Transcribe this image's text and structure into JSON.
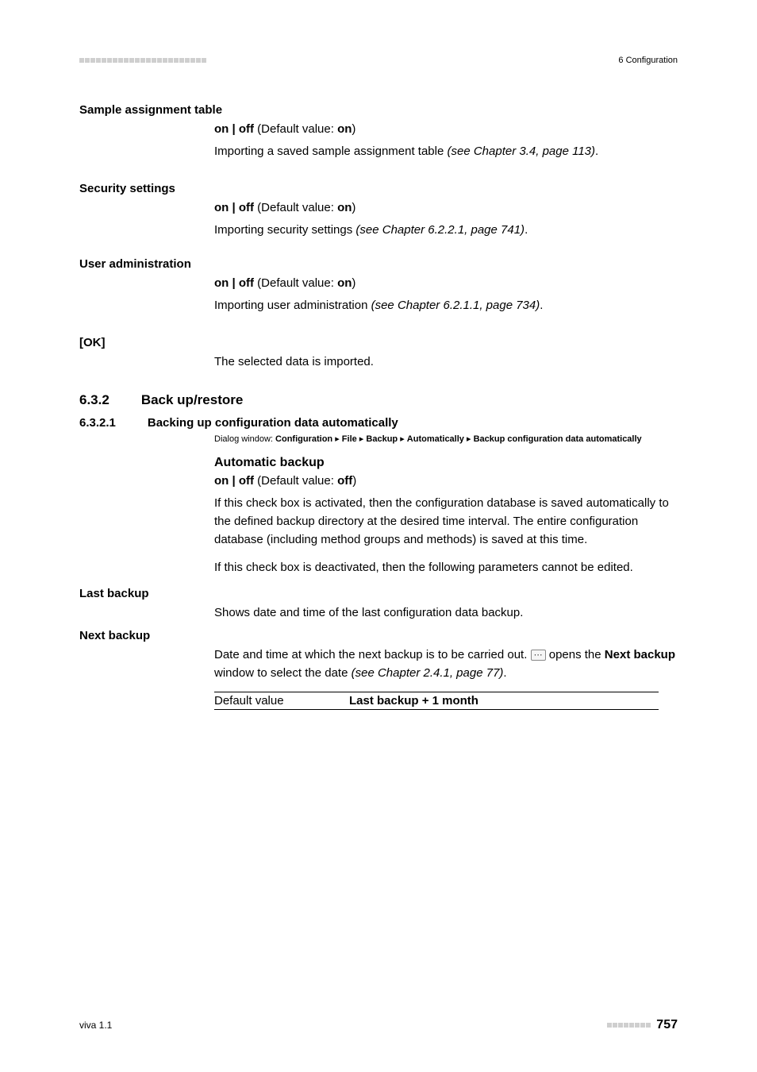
{
  "header": {
    "dash_count": 23,
    "dash_color": "#cfcfcf",
    "right": "6 Configuration"
  },
  "sections": {
    "sample_assignment": {
      "label": "Sample assignment table",
      "onoff": "on | off",
      "default_text": " (Default value: ",
      "default_value": "on",
      "close_paren": ")",
      "desc_pre": "Importing a saved sample assignment table ",
      "desc_italic": "(see Chapter 3.4, page 113)",
      "desc_post": "."
    },
    "security": {
      "label": "Security settings",
      "onoff": "on | off",
      "default_text": " (Default value: ",
      "default_value": "on",
      "close_paren": ")",
      "desc_pre": "Importing security settings ",
      "desc_italic": "(see Chapter 6.2.2.1, page 741)",
      "desc_post": "."
    },
    "user_admin": {
      "label": "User administration",
      "onoff": "on | off",
      "default_text": " (Default value: ",
      "default_value": "on",
      "close_paren": ")",
      "desc_pre": "Importing user administration ",
      "desc_italic": "(see Chapter 6.2.1.1, page 734)",
      "desc_post": "."
    },
    "ok": {
      "label": "[OK]",
      "desc": "The selected data is imported."
    },
    "h3": {
      "num": "6.3.2",
      "title": "Back up/restore"
    },
    "h4": {
      "num": "6.3.2.1",
      "title": "Backing up configuration data automatically"
    },
    "dialog": {
      "prefix": "Dialog window: ",
      "p1": "Configuration",
      "sep": " ▸ ",
      "p2": "File",
      "p3": "Backup",
      "p4": "Automatically",
      "p5": "Backup configuration data automatically"
    },
    "auto_backup": {
      "heading": "Automatic backup",
      "onoff": "on | off",
      "default_text": " (Default value: ",
      "default_value": "off",
      "close_paren": ")",
      "para1": "If this check box is activated, then the configuration database is saved automatically to the defined backup directory at the desired time interval. The entire configuration database (including method groups and methods) is saved at this time.",
      "para2": "If this check box is deactivated, then the following parameters cannot be edited."
    },
    "last_backup": {
      "label": "Last backup",
      "desc": "Shows date and time of the last configuration data backup."
    },
    "next_backup": {
      "label": "Next backup",
      "desc_pre": "Date and time at which the next backup is to be carried out. ",
      "ellipsis_glyph": "⋯",
      "desc_mid": " opens the ",
      "desc_bold": "Next backup",
      "desc_post1": " window to select the date ",
      "desc_italic": "(see Chapter 2.4.1, page 77)",
      "desc_post2": ".",
      "table_label": "Default value",
      "table_value": "Last backup + 1 month"
    }
  },
  "footer": {
    "left": "viva 1.1",
    "dash_count": 8,
    "dash_color": "#cfcfcf",
    "page": "757"
  }
}
